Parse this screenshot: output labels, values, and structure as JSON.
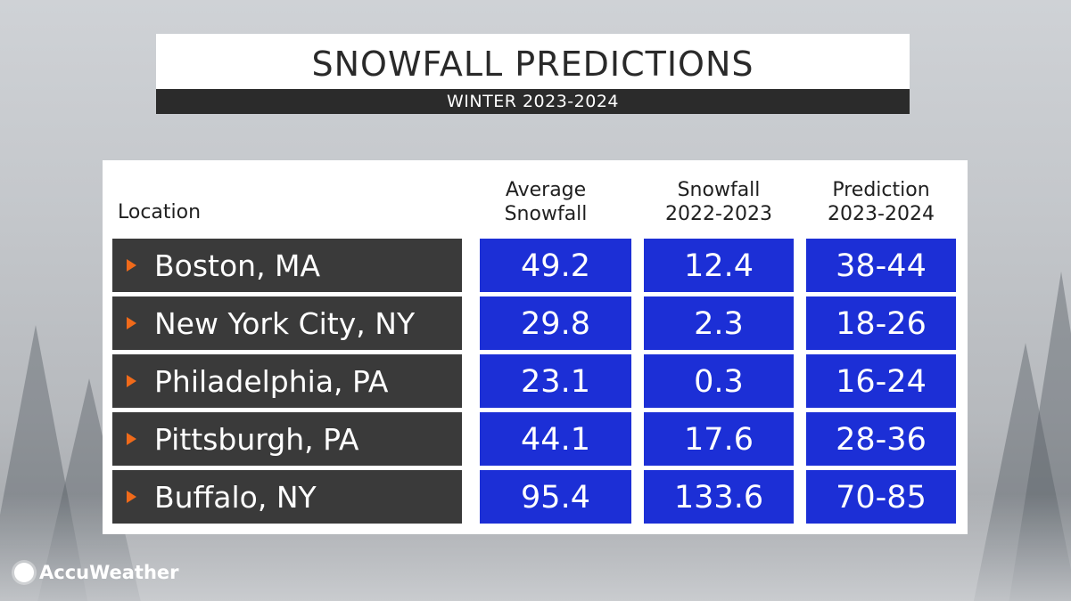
{
  "header": {
    "title": "SNOWFALL PREDICTIONS",
    "subtitle": "WINTER 2023-2024"
  },
  "brand": {
    "name": "AccuWeather",
    "logo_icon": "sun-icon"
  },
  "colors": {
    "location_cell": "#3a3a3a",
    "value_cell": "#1c2fd6",
    "arrow": "#f06a1a",
    "subtitle_bar": "#2b2b2b"
  },
  "chart_data": {
    "type": "table",
    "title": "SNOWFALL PREDICTIONS",
    "subtitle": "WINTER 2023-2024",
    "columns": [
      {
        "line1": "Location",
        "line2": ""
      },
      {
        "line1": "Average",
        "line2": "Snowfall"
      },
      {
        "line1": "Snowfall",
        "line2": "2022-2023"
      },
      {
        "line1": "Prediction",
        "line2": "2023-2024"
      }
    ],
    "rows": [
      {
        "location": "Boston, MA",
        "average": "49.2",
        "snowfall_2022_2023": "12.4",
        "prediction_2023_2024": "38-44"
      },
      {
        "location": "New York City, NY",
        "average": "29.8",
        "snowfall_2022_2023": "2.3",
        "prediction_2023_2024": "18-26"
      },
      {
        "location": "Philadelphia, PA",
        "average": "23.1",
        "snowfall_2022_2023": "0.3",
        "prediction_2023_2024": "16-24"
      },
      {
        "location": "Pittsburgh, PA",
        "average": "44.1",
        "snowfall_2022_2023": "17.6",
        "prediction_2023_2024": "28-36"
      },
      {
        "location": "Buffalo, NY",
        "average": "95.4",
        "snowfall_2022_2023": "133.6",
        "prediction_2023_2024": "70-85"
      }
    ]
  }
}
